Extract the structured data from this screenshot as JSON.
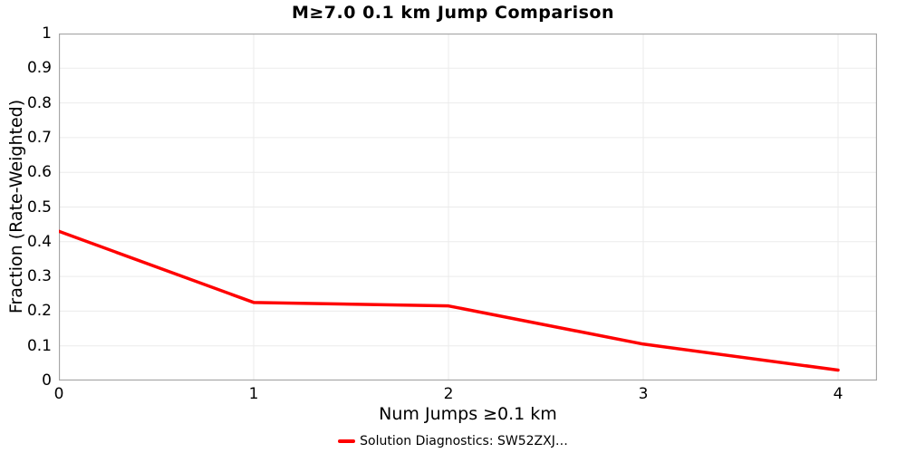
{
  "chart_data": {
    "type": "line",
    "title": "M≥7.0 0.1 km Jump Comparison",
    "xlabel": "Num Jumps ≥0.1 km",
    "ylabel": "Fraction (Rate-Weighted)",
    "x": [
      0,
      1,
      2,
      3,
      4
    ],
    "series": [
      {
        "name": "Solution Diagnostics: SW52ZXJ…",
        "values": [
          0.43,
          0.225,
          0.215,
          0.105,
          0.03
        ],
        "color": "#ff0000"
      }
    ],
    "xlim": [
      0,
      4.2
    ],
    "ylim": [
      0,
      1
    ],
    "xticks": [
      "0",
      "1",
      "2",
      "3",
      "4"
    ],
    "yticks": [
      "0",
      "0.1",
      "0.2",
      "0.3",
      "0.4",
      "0.5",
      "0.6",
      "0.7",
      "0.8",
      "0.9",
      "1"
    ],
    "grid": true,
    "legend_position": "bottom-center",
    "colors": {
      "line": "#ff0000",
      "grid": "#ebebeb",
      "border": "#a6a6a6",
      "text": "#000000"
    }
  }
}
